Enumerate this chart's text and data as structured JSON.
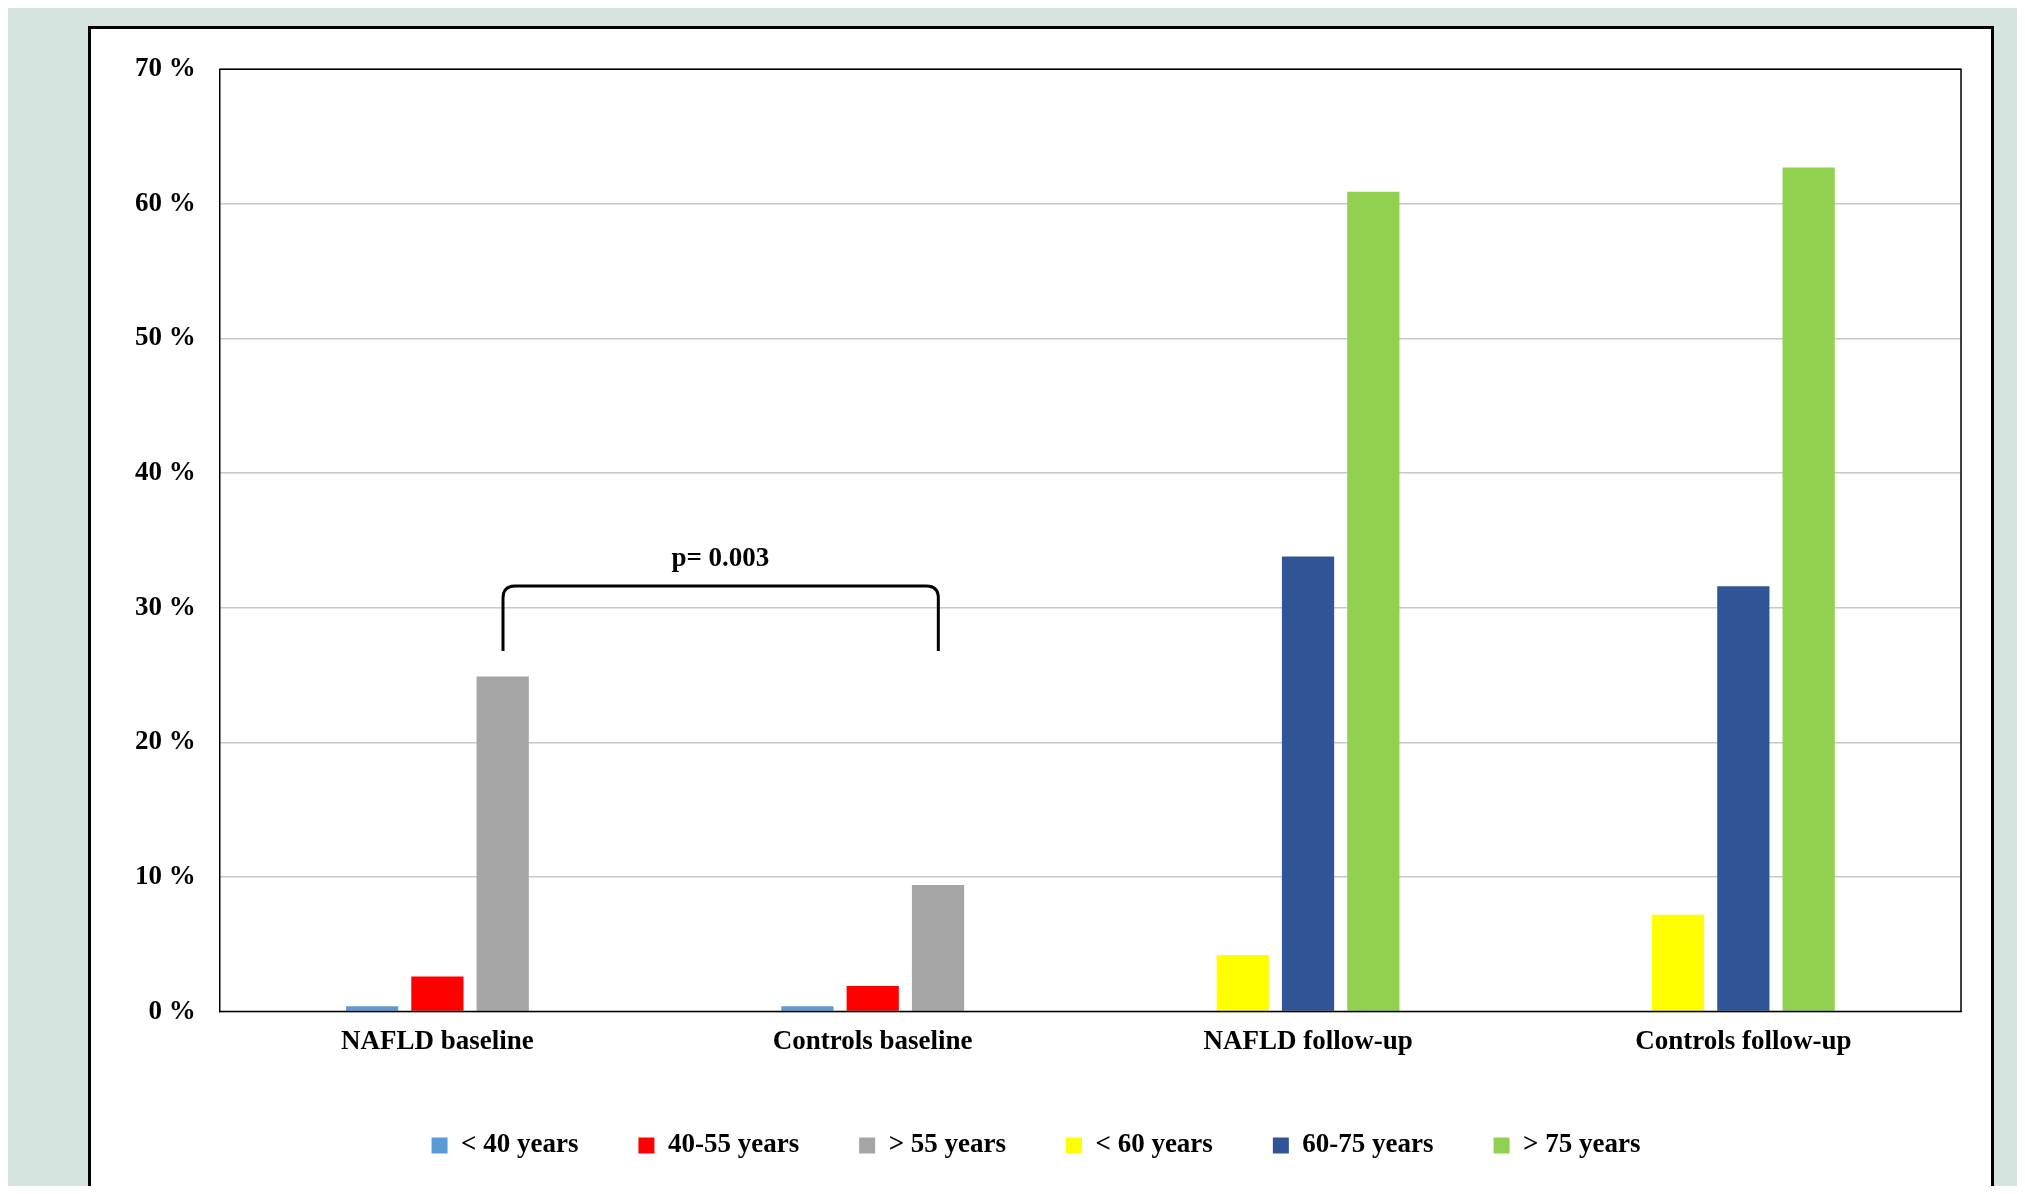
{
  "chart_data": {
    "type": "bar",
    "categories": [
      "NAFLD baseline",
      "Controls baseline",
      "NAFLD follow-up",
      "Controls follow-up"
    ],
    "series": [
      {
        "name": "< 40 years",
        "color": "#5b9bd5",
        "values": [
          0.4,
          0.4,
          null,
          null
        ]
      },
      {
        "name": "40-55 years",
        "color": "#ff0000",
        "values": [
          2.6,
          1.9,
          null,
          null
        ]
      },
      {
        "name": "> 55 years",
        "color": "#a5a5a5",
        "values": [
          24.9,
          9.4,
          null,
          null
        ]
      },
      {
        "name": "< 60 years",
        "color": "#ffff00",
        "values": [
          null,
          null,
          4.2,
          7.2
        ]
      },
      {
        "name": "60-75 years",
        "color": "#2f5597",
        "values": [
          null,
          null,
          33.8,
          31.6
        ]
      },
      {
        "name": "> 75 years",
        "color": "#92d050",
        "values": [
          null,
          null,
          60.9,
          62.7
        ]
      }
    ],
    "ylim": [
      0,
      70
    ],
    "yticks": [
      {
        "value": 0,
        "label": "0 %"
      },
      {
        "value": 10,
        "label": "10 %"
      },
      {
        "value": 20,
        "label": "20 %"
      },
      {
        "value": 30,
        "label": "30 %"
      },
      {
        "value": 40,
        "label": "40 %"
      },
      {
        "value": 50,
        "label": "50 %"
      },
      {
        "value": 60,
        "label": "60 %"
      },
      {
        "value": 70,
        "label": "70 %"
      }
    ],
    "grid": "y",
    "legend": "bottom",
    "annotations": [
      "p= 0.003"
    ]
  }
}
